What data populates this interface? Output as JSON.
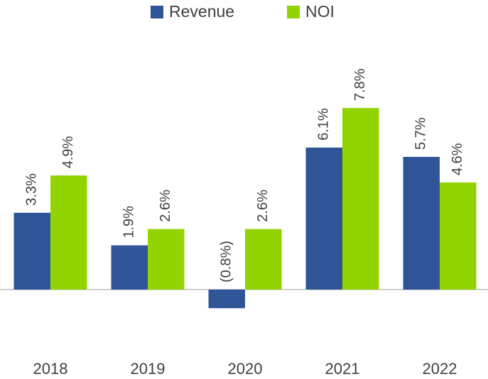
{
  "chart_data": {
    "type": "bar",
    "categories": [
      "2018",
      "2019",
      "2020",
      "2021",
      "2022"
    ],
    "series": [
      {
        "name": "Revenue",
        "color": "#2f5597",
        "values": [
          3.3,
          1.9,
          -0.8,
          6.1,
          5.7
        ],
        "value_labels": [
          "3.3%",
          "1.9%",
          "(0.8%)",
          "6.1%",
          "5.7%"
        ]
      },
      {
        "name": "NOI",
        "color": "#92d400",
        "values": [
          4.9,
          2.6,
          2.6,
          7.8,
          4.6
        ],
        "value_labels": [
          "4.9%",
          "2.6%",
          "2.6%",
          "7.8%",
          "4.6%"
        ]
      }
    ],
    "legend": "top"
  }
}
